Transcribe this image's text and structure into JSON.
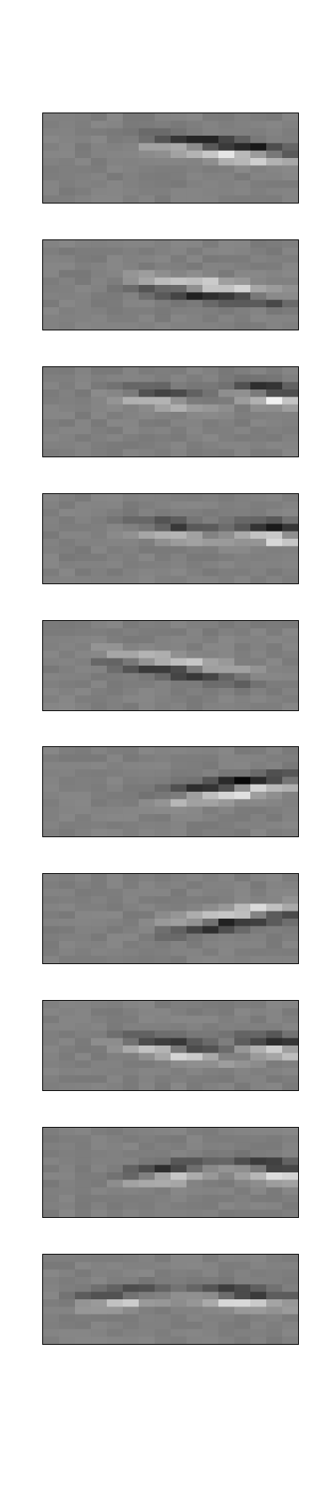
{
  "chart_data": [
    {
      "type": "heatmap",
      "rows": 12,
      "cols": 16,
      "ridges": [
        {
          "x0": 6.0,
          "y0": 4.0,
          "slope": 0.22,
          "sign": 1,
          "amp": 1.0,
          "length": 10
        }
      ]
    },
    {
      "type": "heatmap",
      "rows": 12,
      "cols": 16,
      "ridges": [
        {
          "x0": 5.0,
          "y0": 6.0,
          "slope": 0.2,
          "sign": -1,
          "amp": 0.9,
          "length": 10
        }
      ]
    },
    {
      "type": "heatmap",
      "rows": 12,
      "cols": 16,
      "ridges": [
        {
          "x0": 4.0,
          "y0": 3.5,
          "slope": 0.25,
          "sign": 1,
          "amp": 0.6,
          "length": 6
        },
        {
          "x0": 12.0,
          "y0": 3.5,
          "slope": 0.2,
          "sign": 1,
          "amp": 0.9,
          "length": 4
        }
      ]
    },
    {
      "type": "heatmap",
      "rows": 12,
      "cols": 16,
      "ridges": [
        {
          "x0": 5.0,
          "y0": 4.5,
          "slope": 0.22,
          "sign": 1,
          "amp": 0.6,
          "length": 6
        },
        {
          "x0": 12.0,
          "y0": 5.0,
          "slope": 0.2,
          "sign": 1,
          "amp": 0.9,
          "length": 4
        }
      ]
    },
    {
      "type": "heatmap",
      "rows": 12,
      "cols": 16,
      "ridges": [
        {
          "x0": 3.0,
          "y0": 5.0,
          "slope": 0.28,
          "sign": -1,
          "amp": 0.7,
          "length": 10
        }
      ]
    },
    {
      "type": "heatmap",
      "rows": 12,
      "cols": 16,
      "ridges": [
        {
          "x0": 7.0,
          "y0": 7.0,
          "slope": -0.28,
          "sign": 1,
          "amp": 1.0,
          "length": 9
        }
      ]
    },
    {
      "type": "heatmap",
      "rows": 12,
      "cols": 16,
      "ridges": [
        {
          "x0": 7.0,
          "y0": 7.5,
          "slope": -0.3,
          "sign": -1,
          "amp": 0.9,
          "length": 9
        }
      ]
    },
    {
      "type": "heatmap",
      "rows": 12,
      "cols": 16,
      "ridges": [
        {
          "x0": 4.0,
          "y0": 5.5,
          "slope": 0.3,
          "sign": 1,
          "amp": 0.7,
          "length": 8
        },
        {
          "x0": 12.0,
          "y0": 6.0,
          "slope": 0.15,
          "sign": 1,
          "amp": 0.8,
          "length": 4
        }
      ]
    },
    {
      "type": "heatmap",
      "rows": 12,
      "cols": 16,
      "ridges": [
        {
          "x0": 5.0,
          "y0": 7.0,
          "slope": -0.28,
          "sign": 1,
          "amp": 0.7,
          "length": 5
        },
        {
          "x0": 12.0,
          "y0": 5.5,
          "slope": 0.25,
          "sign": 1,
          "amp": 0.9,
          "length": 4
        }
      ]
    },
    {
      "type": "heatmap",
      "rows": 12,
      "cols": 16,
      "ridges": [
        {
          "x0": 2.0,
          "y0": 6.5,
          "slope": -0.2,
          "sign": 1,
          "amp": 0.6,
          "length": 5
        },
        {
          "x0": 9.0,
          "y0": 5.5,
          "slope": 0.15,
          "sign": 1,
          "amp": 0.8,
          "length": 6
        }
      ]
    }
  ]
}
